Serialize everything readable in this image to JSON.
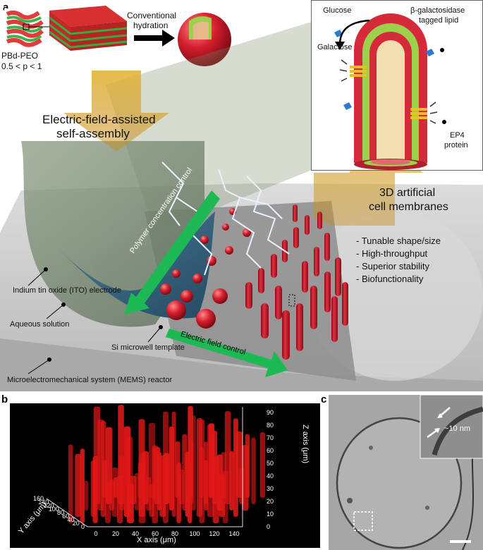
{
  "panel_a": {
    "letter": "a",
    "pbd_peo": "PBd-PEO",
    "p_range": "0.5 < p < 1",
    "conventional_hydration_1": "Conventional",
    "conventional_hydration_2": "hydration",
    "efa_line1": "Electric-field-assisted",
    "efa_line2": "self-assembly",
    "membranes_line1": "3D artificial",
    "membranes_line2": "cell membranes",
    "features": [
      "- Tunable shape/size",
      "- High-throughput",
      "- Superior stability",
      "- Biofunctionality"
    ],
    "ito": "Indium tin oxide (ITO) electrode",
    "aqueous": "Aqueous solution",
    "si_template": "Si microwell template",
    "mems": "Microelectromechanical system (MEMS) reactor",
    "polymer_control": "Polymer concentration control",
    "field_control": "Electric field control",
    "inset": {
      "glucose": "Glucose",
      "galactose": "Galactose",
      "lipid_line1": "β-galactosidase",
      "lipid_line2": "tagged lipid",
      "ep4_line1": "EP4",
      "ep4_line2": "protein"
    },
    "colors": {
      "membrane_red": "#d42a3a",
      "membrane_green": "#9bd14b",
      "arrow_green": "#1db954",
      "arrow_gold": "#d9a520"
    }
  },
  "panel_b": {
    "letter": "b",
    "x_axis_label": "X axis (μm)",
    "y_axis_label": "Y axis (μm)",
    "z_axis_label": "Z axis (μm)",
    "x_ticks": [
      "0",
      "20",
      "40",
      "60",
      "80",
      "100",
      "120",
      "140"
    ],
    "y_ticks": [
      "0",
      "20",
      "40",
      "60",
      "80",
      "100",
      "120",
      "140",
      "160"
    ],
    "z_ticks": [
      "0",
      "10",
      "20",
      "30",
      "40",
      "50",
      "60",
      "70",
      "80",
      "90"
    ]
  },
  "panel_c": {
    "letter": "c",
    "thickness_label": "~10 nm"
  }
}
